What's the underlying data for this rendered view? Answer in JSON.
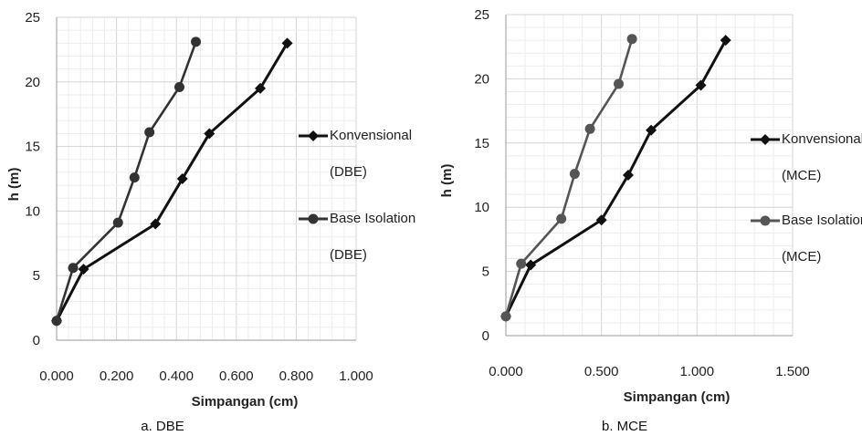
{
  "chart_data": [
    {
      "type": "line",
      "caption": "a.     DBE",
      "xlabel": "Simpangan (cm)",
      "ylabel": "h (m)",
      "xlim": [
        0,
        1.0
      ],
      "ylim": [
        0,
        25
      ],
      "xticks": [
        "0.000",
        "0.200",
        "0.400",
        "0.600",
        "0.800",
        "1.000"
      ],
      "yticks": [
        "0",
        "5",
        "10",
        "15",
        "20",
        "25"
      ],
      "grid": true,
      "legend_position": "right",
      "series": [
        {
          "name": "Konvensional (DBE)",
          "legend_lines": [
            "Konvensional",
            "(DBE)"
          ],
          "marker": "diamond",
          "color": "#111111",
          "x": [
            0.0,
            0.09,
            0.33,
            0.42,
            0.51,
            0.68,
            0.77
          ],
          "y": [
            1.5,
            5.5,
            9.0,
            12.5,
            16.0,
            19.5,
            23.0
          ]
        },
        {
          "name": "Base Isolation (DBE)",
          "legend_lines": [
            "Base Isolation",
            "(DBE)"
          ],
          "marker": "circle",
          "color": "#333333",
          "x": [
            0.0,
            0.055,
            0.205,
            0.26,
            0.31,
            0.41,
            0.465
          ],
          "y": [
            1.5,
            5.6,
            9.1,
            12.6,
            16.1,
            19.6,
            23.1
          ]
        }
      ]
    },
    {
      "type": "line",
      "caption": "b. MCE",
      "xlabel": "Simpangan (cm)",
      "ylabel": "h (m)",
      "xlim": [
        0,
        1.5
      ],
      "ylim": [
        0,
        25
      ],
      "xticks": [
        "0.000",
        "0.500",
        "1.000",
        "1.500"
      ],
      "yticks": [
        "0",
        "5",
        "10",
        "15",
        "20",
        "25"
      ],
      "grid": true,
      "legend_position": "right",
      "series": [
        {
          "name": "Konvensional (MCE)",
          "legend_lines": [
            "Konvensional",
            "(MCE)"
          ],
          "marker": "diamond",
          "color": "#111111",
          "x": [
            0.0,
            0.13,
            0.5,
            0.64,
            0.76,
            1.02,
            1.15
          ],
          "y": [
            1.5,
            5.5,
            9.0,
            12.5,
            16.0,
            19.5,
            23.0
          ]
        },
        {
          "name": "Base Isolation (MCE)",
          "legend_lines": [
            "Base Isolation",
            "(MCE)"
          ],
          "marker": "circle",
          "color": "#555555",
          "x": [
            0.0,
            0.08,
            0.29,
            0.36,
            0.44,
            0.59,
            0.66
          ],
          "y": [
            1.5,
            5.6,
            9.1,
            12.6,
            16.1,
            19.6,
            23.1
          ]
        }
      ]
    }
  ]
}
